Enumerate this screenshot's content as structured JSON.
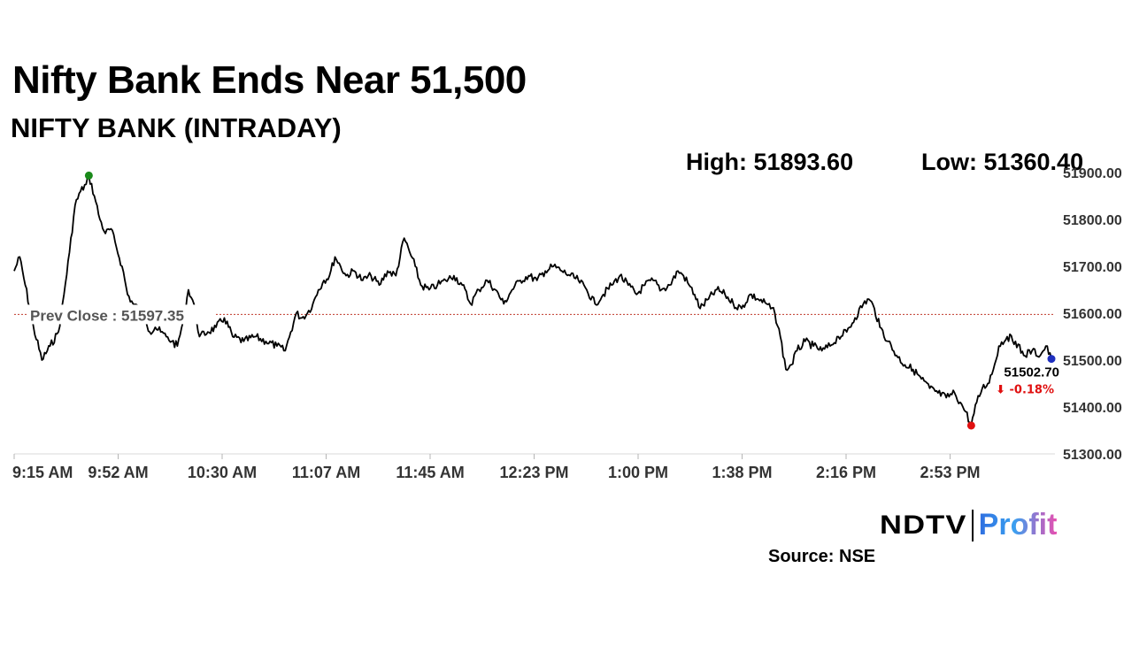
{
  "header": {
    "title": "Nifty Bank Ends Near 51,500",
    "subtitle": "NIFTY BANK (INTRADAY)"
  },
  "stats": {
    "high": "High: 51893.60",
    "low": "Low: 51360.40"
  },
  "chart_data": {
    "type": "line",
    "title": "NIFTY BANK (INTRADAY)",
    "xlabel": "",
    "ylabel": "",
    "ylim": [
      51300,
      51900
    ],
    "y_ticks": [
      51300,
      51400,
      51500,
      51600,
      51700,
      51800,
      51900
    ],
    "y_tick_labels": [
      "51300.00",
      "51400.00",
      "51500.00",
      "51600.00",
      "51700.00",
      "51800.00",
      "51900.00"
    ],
    "x_range": [
      "9:15",
      "15:30"
    ],
    "x_ticks": [
      "9:15 AM",
      "9:52 AM",
      "10:30 AM",
      "11:07 AM",
      "11:45 AM",
      "12:23 PM",
      "1:00 PM",
      "1:38 PM",
      "2:16 PM",
      "2:53 PM"
    ],
    "grid": false,
    "legend": "none",
    "prev_close": 51597.35,
    "prev_close_label": "Prev Close : 51597.35",
    "last_value_label": "51502.70",
    "change_label": "⬇ -0.18%",
    "high_point": {
      "time": "9:42",
      "value": 51893.6
    },
    "low_point": {
      "time": "15:01",
      "value": 51360.4
    },
    "series": [
      {
        "points": [
          [
            "9:15",
            51690
          ],
          [
            "9:17",
            51720
          ],
          [
            "9:19",
            51660
          ],
          [
            "9:22",
            51570
          ],
          [
            "9:25",
            51500
          ],
          [
            "9:28",
            51530
          ],
          [
            "9:31",
            51560
          ],
          [
            "9:33",
            51640
          ],
          [
            "9:35",
            51730
          ],
          [
            "9:37",
            51830
          ],
          [
            "9:39",
            51860
          ],
          [
            "9:41",
            51875
          ],
          [
            "9:42",
            51893.6
          ],
          [
            "9:44",
            51850
          ],
          [
            "9:46",
            51800
          ],
          [
            "9:48",
            51770
          ],
          [
            "9:50",
            51780
          ],
          [
            "9:52",
            51740
          ],
          [
            "9:54",
            51700
          ],
          [
            "9:56",
            51640
          ],
          [
            "9:58",
            51620
          ],
          [
            "10:00",
            51610
          ],
          [
            "10:02",
            51600
          ],
          [
            "10:04",
            51560
          ],
          [
            "10:06",
            51570
          ],
          [
            "10:08",
            51560
          ],
          [
            "10:10",
            51550
          ],
          [
            "10:12",
            51540
          ],
          [
            "10:14",
            51530
          ],
          [
            "10:16",
            51580
          ],
          [
            "10:18",
            51650
          ],
          [
            "10:20",
            51620
          ],
          [
            "10:22",
            51550
          ],
          [
            "10:25",
            51560
          ],
          [
            "10:28",
            51570
          ],
          [
            "10:31",
            51590
          ],
          [
            "10:34",
            51550
          ],
          [
            "10:38",
            51540
          ],
          [
            "10:42",
            51550
          ],
          [
            "10:46",
            51540
          ],
          [
            "10:50",
            51530
          ],
          [
            "10:53",
            51520
          ],
          [
            "10:55",
            51560
          ],
          [
            "10:57",
            51600
          ],
          [
            "10:59",
            51590
          ],
          [
            "11:01",
            51600
          ],
          [
            "11:03",
            51620
          ],
          [
            "11:05",
            51650
          ],
          [
            "11:07",
            51670
          ],
          [
            "11:09",
            51680
          ],
          [
            "11:11",
            51720
          ],
          [
            "11:13",
            51700
          ],
          [
            "11:15",
            51680
          ],
          [
            "11:18",
            51690
          ],
          [
            "11:21",
            51670
          ],
          [
            "11:24",
            51680
          ],
          [
            "11:27",
            51660
          ],
          [
            "11:30",
            51690
          ],
          [
            "11:33",
            51680
          ],
          [
            "11:36",
            51760
          ],
          [
            "11:38",
            51730
          ],
          [
            "11:40",
            51700
          ],
          [
            "11:42",
            51660
          ],
          [
            "11:45",
            51650
          ],
          [
            "11:48",
            51660
          ],
          [
            "11:51",
            51670
          ],
          [
            "11:54",
            51680
          ],
          [
            "11:57",
            51660
          ],
          [
            "12:00",
            51620
          ],
          [
            "12:03",
            51650
          ],
          [
            "12:06",
            51670
          ],
          [
            "12:09",
            51650
          ],
          [
            "12:12",
            51620
          ],
          [
            "12:15",
            51650
          ],
          [
            "12:18",
            51670
          ],
          [
            "12:21",
            51680
          ],
          [
            "12:24",
            51670
          ],
          [
            "12:27",
            51690
          ],
          [
            "12:30",
            51700
          ],
          [
            "12:33",
            51690
          ],
          [
            "12:36",
            51680
          ],
          [
            "12:39",
            51670
          ],
          [
            "12:42",
            51650
          ],
          [
            "12:45",
            51620
          ],
          [
            "12:48",
            51640
          ],
          [
            "12:51",
            51660
          ],
          [
            "12:54",
            51680
          ],
          [
            "12:57",
            51660
          ],
          [
            "13:00",
            51640
          ],
          [
            "13:03",
            51660
          ],
          [
            "13:06",
            51670
          ],
          [
            "13:09",
            51650
          ],
          [
            "13:12",
            51660
          ],
          [
            "13:15",
            51690
          ],
          [
            "13:17",
            51680
          ],
          [
            "13:19",
            51660
          ],
          [
            "13:21",
            51640
          ],
          [
            "13:23",
            51610
          ],
          [
            "13:26",
            51630
          ],
          [
            "13:29",
            51650
          ],
          [
            "13:32",
            51640
          ],
          [
            "13:35",
            51620
          ],
          [
            "13:38",
            51610
          ],
          [
            "13:41",
            51640
          ],
          [
            "13:44",
            51630
          ],
          [
            "13:47",
            51620
          ],
          [
            "13:50",
            51600
          ],
          [
            "13:52",
            51550
          ],
          [
            "13:54",
            51480
          ],
          [
            "13:56",
            51490
          ],
          [
            "13:58",
            51520
          ],
          [
            "14:01",
            51540
          ],
          [
            "14:04",
            51530
          ],
          [
            "14:07",
            51520
          ],
          [
            "14:10",
            51530
          ],
          [
            "14:13",
            51550
          ],
          [
            "14:16",
            51560
          ],
          [
            "14:19",
            51590
          ],
          [
            "14:22",
            51620
          ],
          [
            "14:24",
            51630
          ],
          [
            "14:26",
            51610
          ],
          [
            "14:28",
            51570
          ],
          [
            "14:31",
            51540
          ],
          [
            "14:34",
            51510
          ],
          [
            "14:37",
            51490
          ],
          [
            "14:40",
            51480
          ],
          [
            "14:43",
            51460
          ],
          [
            "14:46",
            51440
          ],
          [
            "14:49",
            51430
          ],
          [
            "14:52",
            51420
          ],
          [
            "14:55",
            51430
          ],
          [
            "14:57",
            51410
          ],
          [
            "14:59",
            51390
          ],
          [
            "15:01",
            51360.4
          ],
          [
            "15:03",
            51410
          ],
          [
            "15:05",
            51440
          ],
          [
            "15:07",
            51450
          ],
          [
            "15:09",
            51480
          ],
          [
            "15:11",
            51530
          ],
          [
            "15:14",
            51550
          ],
          [
            "15:17",
            51540
          ],
          [
            "15:20",
            51510
          ],
          [
            "15:23",
            51520
          ],
          [
            "15:26",
            51510
          ],
          [
            "15:28",
            51530
          ],
          [
            "15:30",
            51502.7
          ]
        ]
      }
    ]
  },
  "logo": {
    "brand": "NDTV",
    "product": "Profit"
  },
  "source": "Source: NSE",
  "colors": {
    "line": "#000000",
    "prev_close_line": "#c0392b",
    "high_marker": "#1a8a1a",
    "low_marker": "#e01010",
    "last_marker": "#1f2fbf",
    "change_text": "#e01010",
    "axis_text": "#333333"
  }
}
